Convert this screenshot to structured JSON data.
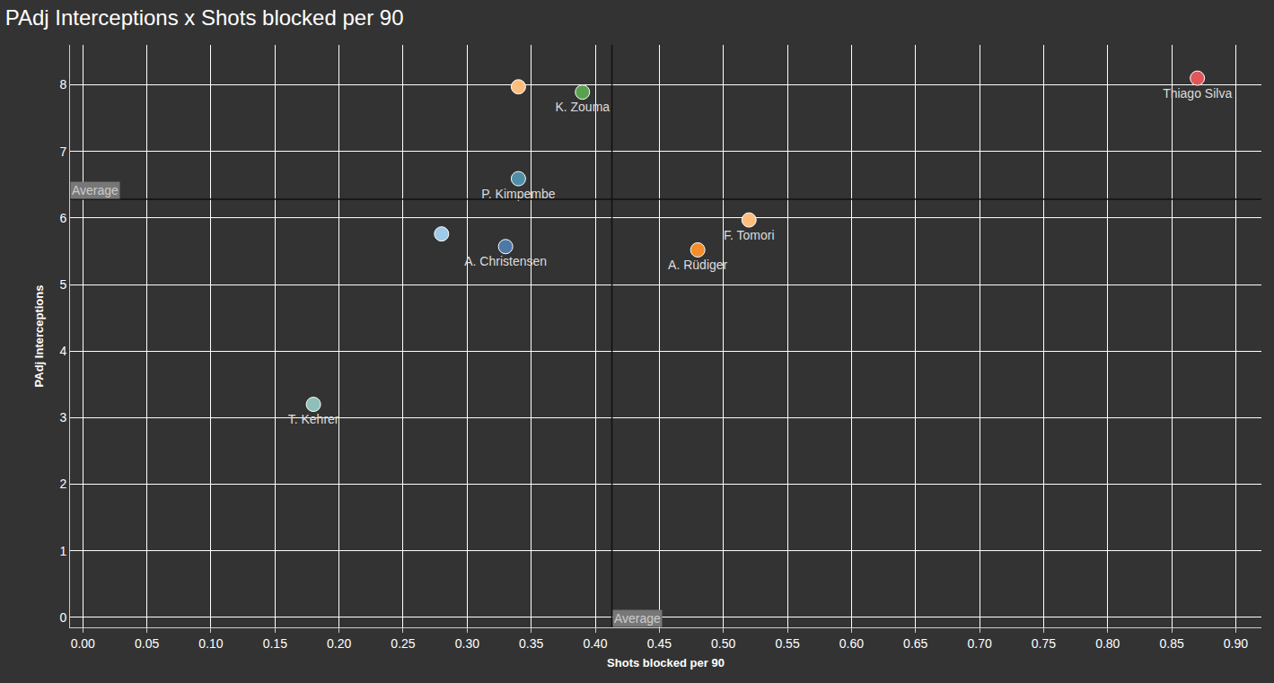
{
  "chart_data": {
    "type": "scatter",
    "title": "PAdj Interceptions x Shots blocked per 90",
    "x_label": "Shots blocked per 90",
    "y_label": "PAdj Interceptions",
    "labels": [
      null,
      "K. Zouma",
      "Thiago Silva",
      "P. Kimpembe",
      null,
      "A. Christensen",
      "F. Tomori",
      "A. Rüdiger",
      "T. Kehrer"
    ],
    "x": [
      0.34,
      0.39,
      0.87,
      0.34,
      0.28,
      0.33,
      0.52,
      0.48,
      0.18
    ],
    "values": [
      7.97,
      7.89,
      8.1,
      6.59,
      5.76,
      5.57,
      5.97,
      5.52,
      3.2
    ],
    "colors": [
      "#ffbe7d",
      "#59a14f",
      "#e15759",
      "#4e8fa6",
      "#a0cbe8",
      "#4e79a7",
      "#ffbe7d",
      "#f28e2b",
      "#8fbfb9"
    ],
    "reference_lines": [
      {
        "axis": "x",
        "value": 0.413,
        "label": "Average"
      },
      {
        "axis": "y",
        "value": 6.28,
        "label": "Average"
      }
    ],
    "xlim": [
      -0.01,
      0.92
    ],
    "xticks": [
      {
        "value": 0,
        "label": "0.00"
      },
      {
        "value": 0.05,
        "label": "0.05"
      },
      {
        "value": 0.1,
        "label": "0.10"
      },
      {
        "value": 0.15,
        "label": "0.15"
      },
      {
        "value": 0.2,
        "label": "0.20"
      },
      {
        "value": 0.25,
        "label": "0.25"
      },
      {
        "value": 0.3,
        "label": "0.30"
      },
      {
        "value": 0.35,
        "label": "0.35"
      },
      {
        "value": 0.4,
        "label": "0.40"
      },
      {
        "value": 0.45,
        "label": "0.45"
      },
      {
        "value": 0.5,
        "label": "0.50"
      },
      {
        "value": 0.55,
        "label": "0.55"
      },
      {
        "value": 0.6,
        "label": "0.60"
      },
      {
        "value": 0.65,
        "label": "0.65"
      },
      {
        "value": 0.7,
        "label": "0.70"
      },
      {
        "value": 0.75,
        "label": "0.75"
      },
      {
        "value": 0.8,
        "label": "0.80"
      },
      {
        "value": 0.85,
        "label": "0.85"
      },
      {
        "value": 0.9,
        "label": "0.90"
      }
    ],
    "ylim": [
      -0.15,
      8.6
    ],
    "yticks": [
      0,
      1,
      2,
      3,
      4,
      5,
      6,
      7,
      8
    ],
    "grid": true
  }
}
